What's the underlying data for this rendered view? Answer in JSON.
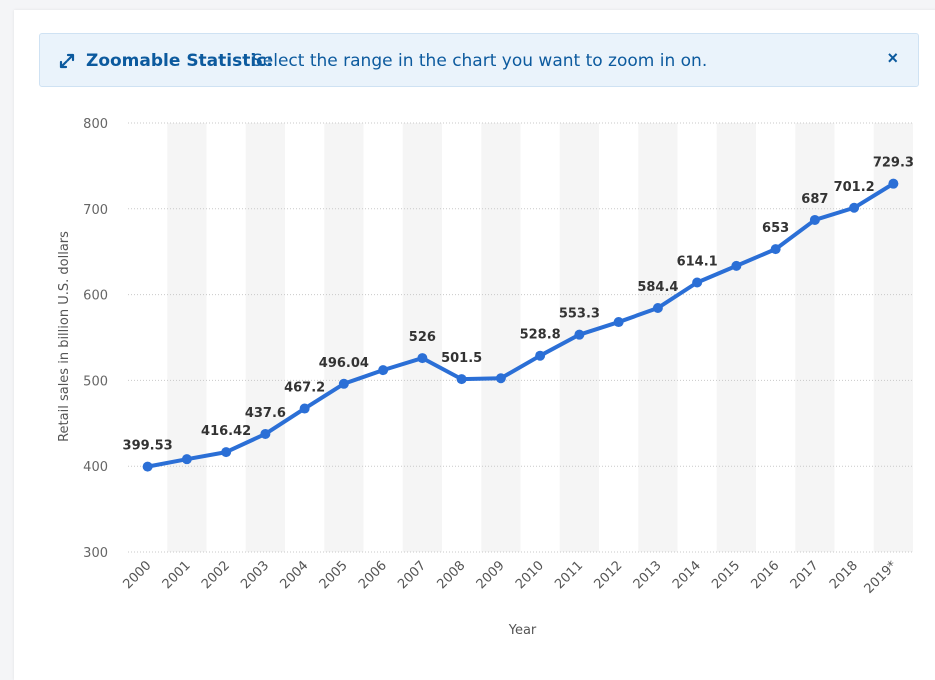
{
  "banner": {
    "title": "Zoomable Statistic:",
    "text": "Select the range in the chart you want to zoom in on.",
    "close": "×",
    "icon": "expand-arrows-icon",
    "color": "#0c5a9e"
  },
  "chart_data": {
    "type": "line",
    "categories": [
      "2000",
      "2001",
      "2002",
      "2003",
      "2004",
      "2005",
      "2006",
      "2007",
      "2008",
      "2009",
      "2010",
      "2011",
      "2012",
      "2013",
      "2014",
      "2015",
      "2016",
      "2017",
      "2018",
      "2019*"
    ],
    "series": [
      {
        "values": [
          399.53,
          408.2,
          416.42,
          437.6,
          467.2,
          496.04,
          512.0,
          526,
          501.5,
          502.5,
          528.8,
          553.3,
          568.0,
          584.4,
          614.1,
          633.5,
          653,
          687,
          701.2,
          729.3
        ],
        "labels": [
          "399.53",
          "",
          "416.42",
          "437.6",
          "467.2",
          "496.04",
          "",
          "526",
          "501.5",
          "",
          "528.8",
          "553.3",
          "",
          "584.4",
          "614.1",
          "",
          "653",
          "687",
          "701.2",
          "729.3"
        ],
        "color": "#2b6fd6"
      }
    ],
    "xlabel": "Year",
    "ylabel": "Retail sales in billion U.S. dollars",
    "ylim": [
      300,
      800
    ],
    "yticks": [
      300,
      400,
      500,
      600,
      700,
      800
    ],
    "grid": true,
    "band_color": "#f5f5f5"
  }
}
